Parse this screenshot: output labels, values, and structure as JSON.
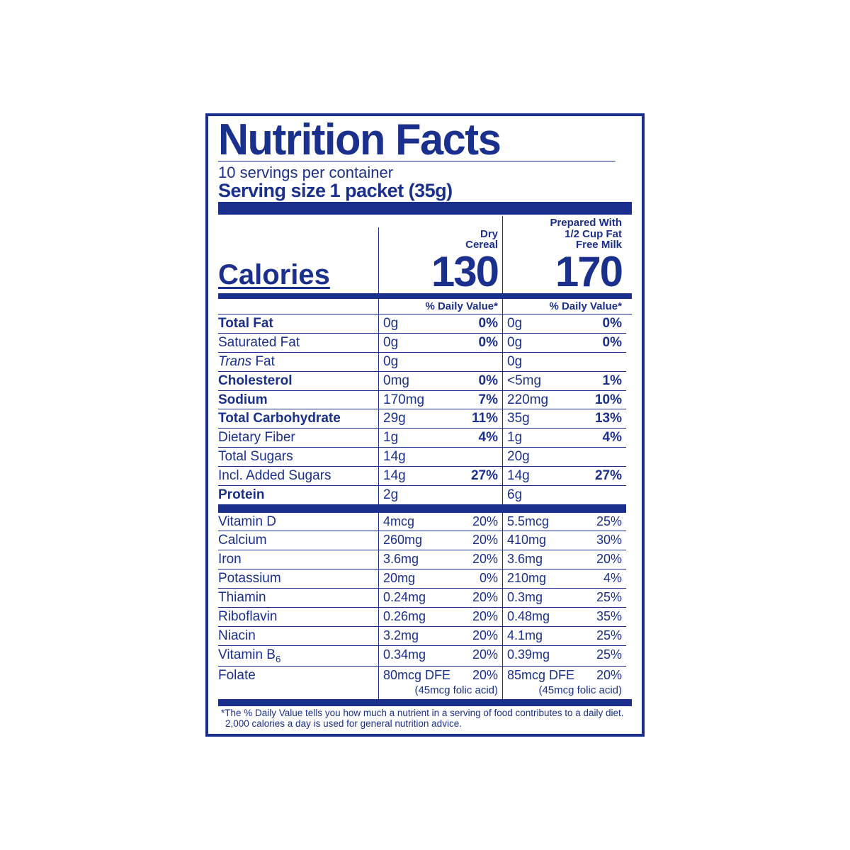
{
  "header": {
    "title": "Nutrition Facts",
    "servings_per": "10 servings per container",
    "serving_size_label": "Serving size",
    "serving_size_value": "1 packet (35g)"
  },
  "columns": {
    "col1_header": "Dry\nCereal",
    "col2_header": "Prepared With\n1/2 Cup Fat\nFree Milk",
    "dv_header": "% Daily Value*"
  },
  "calories": {
    "label": "Calories",
    "col1": "130",
    "col2": "170"
  },
  "nutrients": [
    {
      "label": "Total Fat",
      "bold": true,
      "indent": 0,
      "c1_amt": "0g",
      "c1_pct": "0%",
      "c2_amt": "0g",
      "c2_pct": "0%"
    },
    {
      "label": "Saturated Fat",
      "bold": false,
      "indent": 1,
      "c1_amt": "0g",
      "c1_pct": "0%",
      "c2_amt": "0g",
      "c2_pct": "0%"
    },
    {
      "label": "Trans Fat",
      "bold": false,
      "indent": 1,
      "ital_prefix": "Trans",
      "rest": " Fat",
      "c1_amt": "0g",
      "c1_pct": "",
      "c2_amt": "0g",
      "c2_pct": ""
    },
    {
      "label": "Cholesterol",
      "bold": true,
      "indent": 0,
      "c1_amt": "0mg",
      "c1_pct": "0%",
      "c2_amt": "<5mg",
      "c2_pct": "1%"
    },
    {
      "label": "Sodium",
      "bold": true,
      "indent": 0,
      "c1_amt": "170mg",
      "c1_pct": "7%",
      "c2_amt": "220mg",
      "c2_pct": "10%"
    },
    {
      "label": "Total Carbohydrate",
      "bold": true,
      "indent": 0,
      "c1_amt": "29g",
      "c1_pct": "11%",
      "c2_amt": "35g",
      "c2_pct": "13%"
    },
    {
      "label": "Dietary Fiber",
      "bold": false,
      "indent": 1,
      "c1_amt": "1g",
      "c1_pct": "4%",
      "c2_amt": "1g",
      "c2_pct": "4%"
    },
    {
      "label": "Total Sugars",
      "bold": false,
      "indent": 1,
      "c1_amt": "14g",
      "c1_pct": "",
      "c2_amt": "20g",
      "c2_pct": ""
    },
    {
      "label": "Incl. Added Sugars",
      "bold": false,
      "indent": 3,
      "c1_amt": "14g",
      "c1_pct": "27%",
      "c2_amt": "14g",
      "c2_pct": "27%"
    },
    {
      "label": "Protein",
      "bold": true,
      "indent": 0,
      "c1_amt": "2g",
      "c1_pct": "",
      "c2_amt": "6g",
      "c2_pct": ""
    }
  ],
  "vitamins": [
    {
      "label": "Vitamin D",
      "c1_amt": "4mcg",
      "c1_pct": "20%",
      "c2_amt": "5.5mcg",
      "c2_pct": "25%"
    },
    {
      "label": "Calcium",
      "c1_amt": "260mg",
      "c1_pct": "20%",
      "c2_amt": "410mg",
      "c2_pct": "30%"
    },
    {
      "label": "Iron",
      "c1_amt": "3.6mg",
      "c1_pct": "20%",
      "c2_amt": "3.6mg",
      "c2_pct": "20%"
    },
    {
      "label": "Potassium",
      "c1_amt": "20mg",
      "c1_pct": "0%",
      "c2_amt": "210mg",
      "c2_pct": "4%"
    },
    {
      "label": "Thiamin",
      "c1_amt": "0.24mg",
      "c1_pct": "20%",
      "c2_amt": "0.3mg",
      "c2_pct": "25%"
    },
    {
      "label": "Riboflavin",
      "c1_amt": "0.26mg",
      "c1_pct": "20%",
      "c2_amt": "0.48mg",
      "c2_pct": "35%"
    },
    {
      "label": "Niacin",
      "c1_amt": "3.2mg",
      "c1_pct": "20%",
      "c2_amt": "4.1mg",
      "c2_pct": "25%"
    },
    {
      "label": "Vitamin B6",
      "sub": "6",
      "c1_amt": "0.34mg",
      "c1_pct": "20%",
      "c2_amt": "0.39mg",
      "c2_pct": "25%"
    },
    {
      "label": "Folate",
      "c1_amt": "80mcg DFE",
      "c1_pct": "20%",
      "c2_amt": "85mcg DFE",
      "c2_pct": "20%",
      "sub1": "(45mcg folic acid)",
      "sub2": "(45mcg folic acid)"
    }
  ],
  "footnote": "*The % Daily Value tells you how much a nutrient in a serving of food contributes to a daily diet. 2,000 calories a day is used for general nutrition advice."
}
